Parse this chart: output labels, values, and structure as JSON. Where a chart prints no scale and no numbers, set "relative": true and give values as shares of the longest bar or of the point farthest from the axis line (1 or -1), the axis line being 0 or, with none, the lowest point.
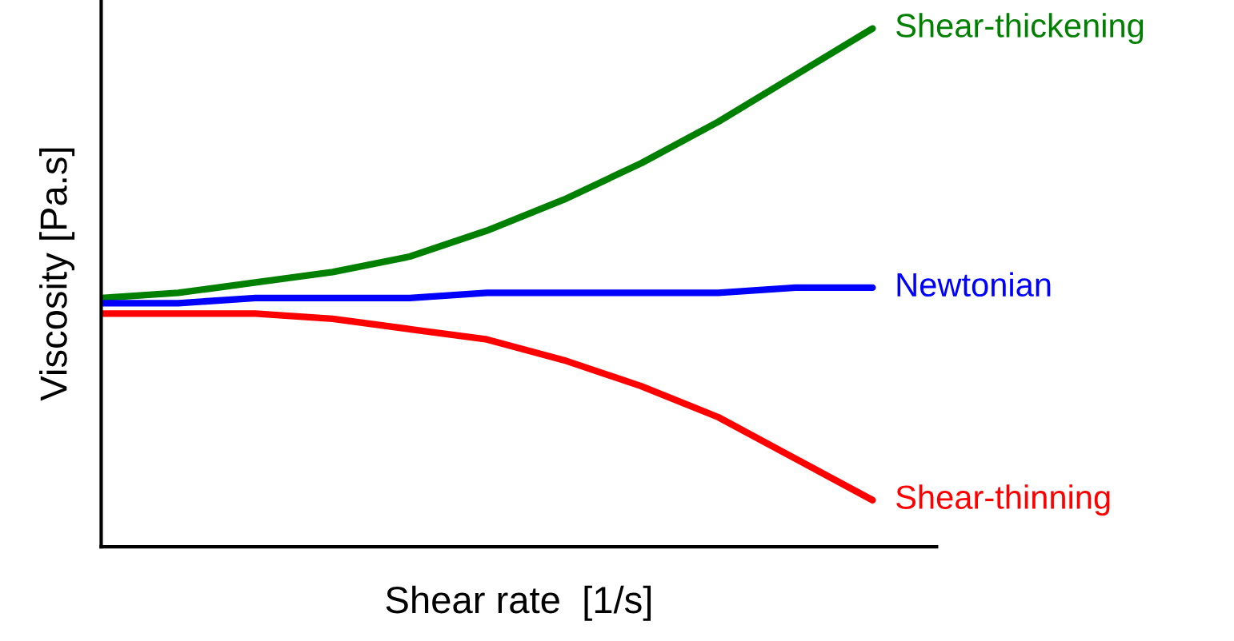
{
  "chart_data": {
    "type": "line",
    "relative": true,
    "xlabel": "Shear rate  [1/s]",
    "ylabel": "Viscosity [Pa.s]",
    "categories": [
      null,
      null,
      null,
      null,
      null,
      null,
      null,
      null,
      null,
      null,
      null
    ],
    "series": [
      {
        "name": "Shear-thickening",
        "color": "#008000",
        "values": [
          0.48,
          0.49,
          0.51,
          0.53,
          0.56,
          0.61,
          0.67,
          0.74,
          0.82,
          0.91,
          1.0
        ]
      },
      {
        "name": "Newtonian",
        "color": "#0000ff",
        "values": [
          0.47,
          0.47,
          0.48,
          0.48,
          0.48,
          0.49,
          0.49,
          0.49,
          0.49,
          0.5,
          0.5
        ]
      },
      {
        "name": "Shear-thinning",
        "color": "#ff0000",
        "values": [
          0.45,
          0.45,
          0.45,
          0.44,
          0.42,
          0.4,
          0.36,
          0.31,
          0.25,
          0.17,
          0.09
        ]
      }
    ],
    "grid": false,
    "legend": false,
    "marker": "none",
    "line_style": "solid"
  }
}
